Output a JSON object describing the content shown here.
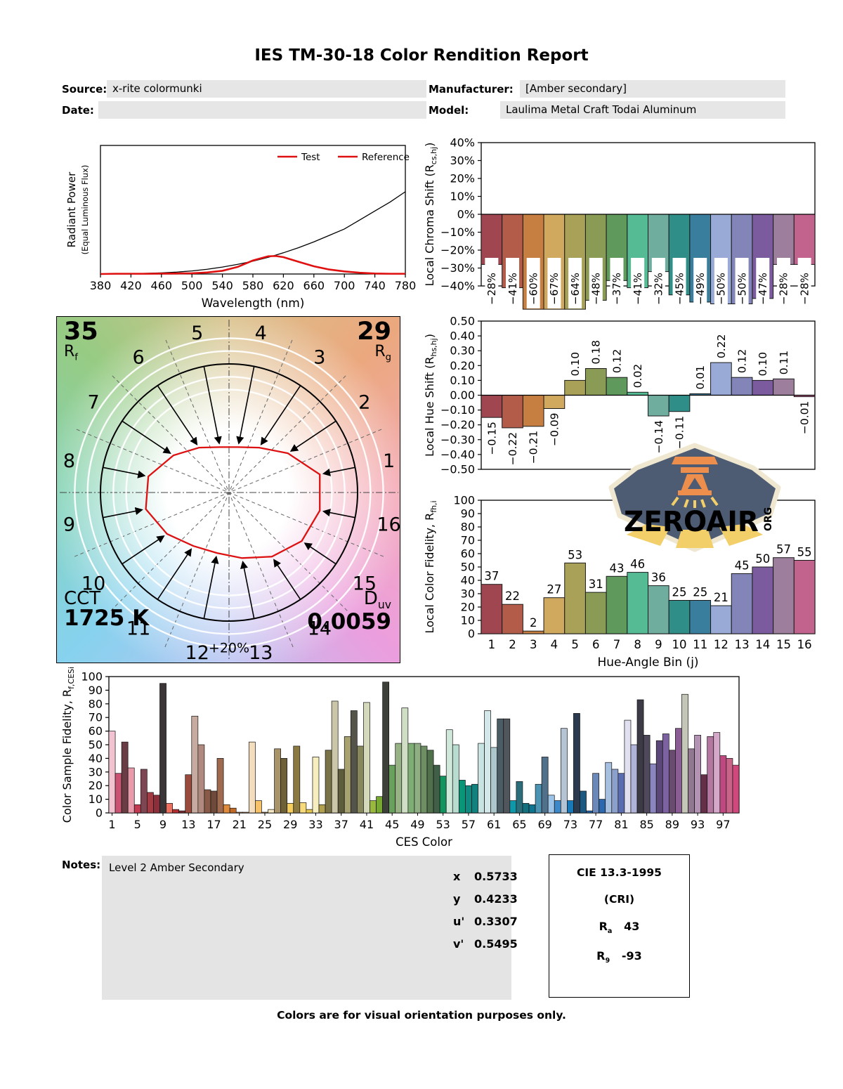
{
  "title": "IES TM-30-18 Color Rendition Report",
  "meta": {
    "source_label": "Source:",
    "source_value": "x-rite colormunki",
    "manufacturer_label": "Manufacturer:",
    "manufacturer_value": "[Amber secondary]",
    "date_label": "Date:",
    "date_value": "",
    "model_label": "Model:",
    "model_value": "Laulima Metal Craft Todai Aluminum"
  },
  "cvg": {
    "rf_value": "35",
    "rf_label": "R",
    "rf_sub": "f",
    "rg_value": "29",
    "rg_label": "R",
    "rg_sub": "g",
    "cct_label": "CCT",
    "cct_value": "1725 K",
    "duv_label": "D",
    "duv_sub": "uv",
    "duv_value": "0.0059",
    "ring_label": "+20%",
    "bins": [
      "1",
      "2",
      "3",
      "4",
      "5",
      "6",
      "7",
      "8",
      "9",
      "10",
      "11",
      "12",
      "13",
      "14",
      "15",
      "16"
    ],
    "polygon_fractions": [
      0.72,
      0.55,
      0.42,
      0.36,
      0.36,
      0.42,
      0.52,
      0.64,
      0.66,
      0.58,
      0.5,
      0.48,
      0.52,
      0.6,
      0.68,
      0.72
    ],
    "rings": [
      0.8,
      0.9,
      1.1,
      1.2
    ],
    "wheel_colors": [
      "#d9c28c",
      "#eba87e",
      "#f4a8b6",
      "#eb9ede",
      "#b9c3f2",
      "#86d2ee",
      "#83d3b6",
      "#97cb83"
    ]
  },
  "watermark": {
    "brand": "ZEROAIR",
    "tld": "ORG",
    "bg": "#4d5c72",
    "orange": "#ee8e4d",
    "yellow": "#f3cf69",
    "border": "#efe7cf"
  },
  "bin_colors": [
    "#a04651",
    "#b25c49",
    "#c67e41",
    "#d0a95e",
    "#a9a158",
    "#8a9b55",
    "#5f9a5c",
    "#54bb95",
    "#6fae9f",
    "#2f8f88",
    "#3a7e9d",
    "#9aaad6",
    "#8384b8",
    "#7b5b9e",
    "#9d7f9d",
    "#c2638e"
  ],
  "chart_data": [
    {
      "id": "spectrum",
      "type": "line",
      "xlabel": "Wavelength (nm)",
      "ylabel": "Radiant Power",
      "ylabel2": "(Equal Luminous Flux)",
      "xlim": [
        380,
        780
      ],
      "x_ticks": [
        380,
        420,
        460,
        500,
        540,
        580,
        620,
        660,
        700,
        740,
        780
      ],
      "legend": [
        {
          "label": "Test",
          "line": "#e01010",
          "text": "#e01010"
        },
        {
          "label": "Reference",
          "line": "#e01010",
          "text": "#000000"
        }
      ],
      "series": [
        {
          "name": "Reference",
          "color": "#000000",
          "width": 1.3,
          "x": [
            380,
            400,
            420,
            440,
            460,
            480,
            500,
            520,
            540,
            560,
            580,
            600,
            610,
            620,
            640,
            660,
            680,
            700,
            720,
            740,
            760,
            780
          ],
          "y": [
            0,
            0.001,
            0.002,
            0.005,
            0.009,
            0.015,
            0.024,
            0.037,
            0.054,
            0.075,
            0.1,
            0.13,
            0.147,
            0.165,
            0.205,
            0.25,
            0.3,
            0.35,
            0.42,
            0.49,
            0.56,
            0.64
          ]
        },
        {
          "name": "Test",
          "color": "#e01010",
          "width": 2.6,
          "x": [
            380,
            400,
            420,
            440,
            460,
            480,
            500,
            520,
            540,
            560,
            580,
            600,
            610,
            620,
            640,
            660,
            680,
            700,
            720,
            740,
            760,
            780
          ],
          "y": [
            0,
            0.002,
            0.002,
            0.002,
            0.003,
            0.004,
            0.006,
            0.012,
            0.025,
            0.055,
            0.105,
            0.138,
            0.14,
            0.131,
            0.095,
            0.06,
            0.035,
            0.02,
            0.01,
            0.004,
            0.002,
            0.002
          ]
        }
      ]
    },
    {
      "id": "chroma_shift",
      "type": "bar",
      "ylabel_parts": [
        {
          "t": "Local Chroma Shift (R"
        },
        {
          "t": "cs,hj",
          "sub": true
        },
        {
          "t": ")"
        }
      ],
      "ylim": [
        -40,
        40
      ],
      "ytick_step": 10,
      "ytick_suffix": "%",
      "clip_min": -53,
      "values": [
        -28,
        -41,
        -60,
        -67,
        -64,
        -48,
        -37,
        -41,
        -32,
        -45,
        -49,
        -50,
        -50,
        -47,
        -28,
        -28
      ]
    },
    {
      "id": "hue_shift",
      "type": "bar",
      "ylabel_parts": [
        {
          "t": "Local Hue Shift (R"
        },
        {
          "t": "hs,hj",
          "sub": true
        },
        {
          "t": ")"
        }
      ],
      "ylim": [
        -0.5,
        0.5
      ],
      "ytick_step": 0.1,
      "values": [
        -0.15,
        -0.22,
        -0.21,
        -0.09,
        0.1,
        0.18,
        0.12,
        0.02,
        -0.14,
        -0.11,
        0.01,
        0.22,
        0.12,
        0.1,
        0.11,
        -0.01
      ]
    },
    {
      "id": "local_fidelity",
      "type": "bar",
      "ylabel_parts": [
        {
          "t": "Local Color Fidelity, R"
        },
        {
          "t": "fh,i",
          "sub": true
        }
      ],
      "xlabel": "Hue-Angle Bin (j)",
      "categories": [
        "1",
        "2",
        "3",
        "4",
        "5",
        "6",
        "7",
        "8",
        "9",
        "10",
        "11",
        "12",
        "13",
        "14",
        "15",
        "16"
      ],
      "ylim": [
        0,
        100
      ],
      "ytick_step": 10,
      "values": [
        37,
        22,
        2,
        27,
        53,
        31,
        43,
        46,
        36,
        25,
        25,
        21,
        45,
        50,
        57,
        55
      ]
    },
    {
      "id": "ces_fidelity",
      "type": "bar",
      "ylabel_parts": [
        {
          "t": "Color Sample Fidelity, R"
        },
        {
          "t": "f,CESi",
          "sub": true
        }
      ],
      "xlabel": "CES Color",
      "ylim": [
        0,
        100
      ],
      "ytick_step": 10,
      "xtick_every": 4,
      "values": [
        60,
        29,
        52,
        33,
        6,
        32,
        15,
        13,
        95,
        7,
        2.5,
        1.5,
        28,
        71,
        50,
        17,
        16,
        40,
        6,
        3.5,
        0.5,
        0.5,
        52,
        9,
        0.5,
        2.5,
        47,
        40,
        7,
        49,
        7.5,
        2.5,
        41,
        6,
        46,
        82,
        32,
        56,
        75,
        49,
        81,
        9,
        12,
        96,
        35,
        51,
        77,
        51,
        51,
        49,
        46,
        35,
        27,
        61,
        50,
        24,
        20,
        21,
        51,
        75,
        48,
        69,
        69,
        9,
        23,
        7,
        6,
        21,
        41,
        13,
        9,
        62,
        9,
        73,
        16,
        1.5,
        29,
        10,
        37,
        32,
        29,
        68,
        50,
        83,
        57,
        36,
        53,
        58,
        46,
        62,
        87,
        47,
        57,
        28,
        56,
        59,
        42,
        40,
        35
      ],
      "colors": [
        "#f1c3d0",
        "#ca5272",
        "#6a3c44",
        "#e99aab",
        "#c23a52",
        "#7e4653",
        "#a33b45",
        "#8c2f3a",
        "#3a3537",
        "#ef6f5f",
        "#b13031",
        "#7c2a33",
        "#9a4a3c",
        "#c7aba1",
        "#b08a7e",
        "#8a5a48",
        "#6e4a3a",
        "#a06a50",
        "#e08a3c",
        "#c06a28",
        "#e8a050",
        "#f0b060",
        "#f3ddbc",
        "#f7c169",
        "#eeb24e",
        "#f7e9c4",
        "#a89468",
        "#6e6038",
        "#f7cd5e",
        "#8a7a42",
        "#f7da7a",
        "#e7c84e",
        "#f7eec0",
        "#b0a050",
        "#7a7348",
        "#ccc6a8",
        "#5e5c3c",
        "#a8a270",
        "#55544a",
        "#87885c",
        "#d5d9bc",
        "#9ab83c",
        "#76a832",
        "#3c4038",
        "#6aa05e",
        "#97b284",
        "#cfdec4",
        "#7fae74",
        "#8fae84",
        "#6e8e64",
        "#50704c",
        "#3f6047",
        "#12945f",
        "#d0e8da",
        "#b8dcd0",
        "#0a9478",
        "#0e8a80",
        "#12827e",
        "#c8e4e2",
        "#d4e8ea",
        "#acc8cc",
        "#4c5c64",
        "#50565c",
        "#0e98a8",
        "#2a6e7c",
        "#15707e",
        "#0f7490",
        "#4c94b4",
        "#51708a",
        "#9cc4e8",
        "#3c88c8",
        "#b4c4d4",
        "#1878b8",
        "#2c3a50",
        "#1c5880",
        "#2060a8",
        "#6c88b8",
        "#2c68b0",
        "#a8c0e0",
        "#8ca0cc",
        "#5c6cb0",
        "#e0e0f0",
        "#b0b4d8",
        "#3c3a44",
        "#50495c",
        "#8c86c0",
        "#5c4878",
        "#7c62a0",
        "#6a4a6e",
        "#8a5e94",
        "#c4c6b8",
        "#907890",
        "#b492b4",
        "#643048",
        "#b478a0",
        "#d4a8c8",
        "#c04880",
        "#c86488",
        "#d0487c"
      ]
    }
  ],
  "notes": {
    "label": "Notes:",
    "text": "Level 2 Amber Secondary"
  },
  "chromaticity": {
    "rows": [
      {
        "label": "x",
        "value": "0.5733"
      },
      {
        "label": "y",
        "value": "0.4233"
      },
      {
        "label": "u'",
        "value": "0.3307"
      },
      {
        "label": "v'",
        "value": "0.5495"
      }
    ]
  },
  "cri": {
    "title": "CIE 13.3-1995",
    "subtitle": "(CRI)",
    "rows": [
      {
        "label": "R",
        "sub": "a",
        "value": "43"
      },
      {
        "label": "R",
        "sub": "9",
        "value": "-93"
      }
    ]
  },
  "footer": "Colors are for visual orientation purposes only."
}
